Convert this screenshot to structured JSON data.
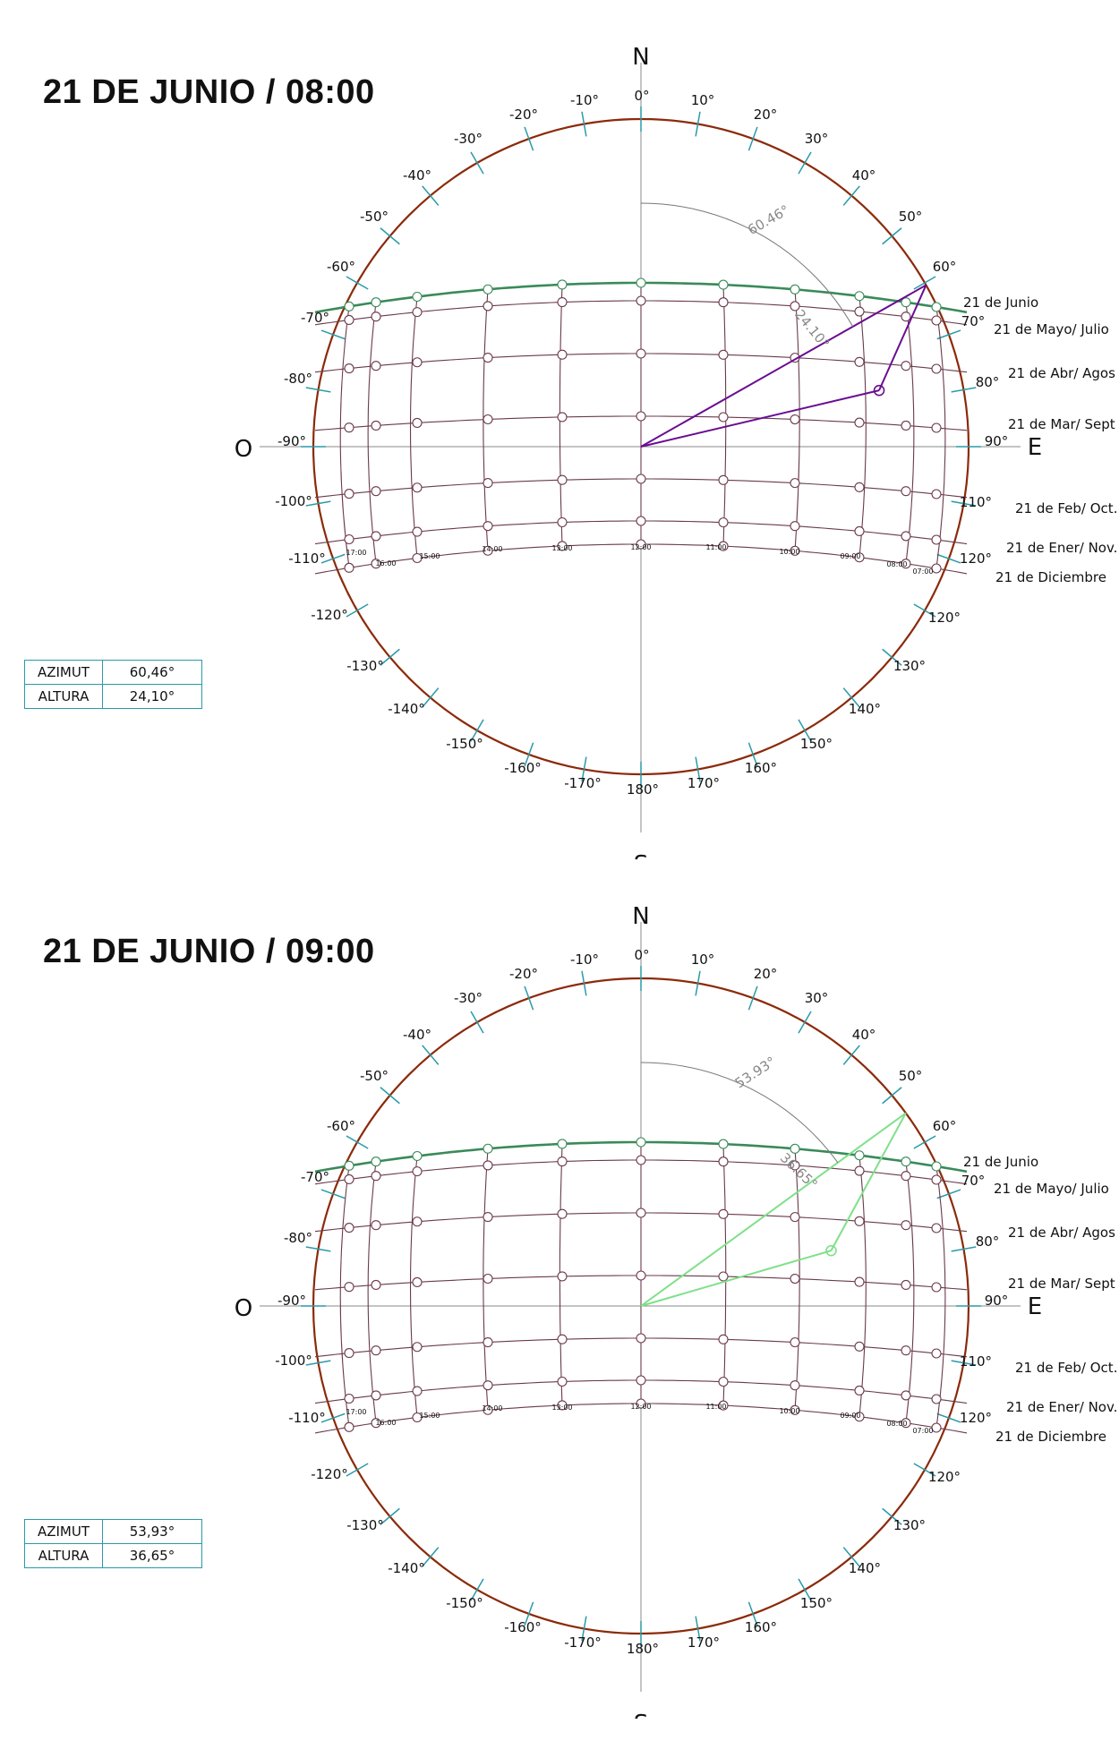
{
  "panels": [
    {
      "title": "21 DE JUNIO / 08:00",
      "azimut_label": "AZIMUT",
      "azimut": "60,46°",
      "altura_label": "ALTURA",
      "altura": "24,10°",
      "azimut_arc_label": "60.46°",
      "altura_arc_label": "24.10°",
      "sun_azimuth": 60.46,
      "sun_altitude": 24.1,
      "construction_color": "#6a0d91"
    },
    {
      "title": "21 DE JUNIO / 09:00",
      "azimut_label": "AZIMUT",
      "azimut": "53,93°",
      "altura_label": "ALTURA",
      "altura": "36,65°",
      "azimut_arc_label": "53.93°",
      "altura_arc_label": "36.65°",
      "sun_azimuth": 53.93,
      "sun_altitude": 36.65,
      "construction_color": "#7fe08a"
    }
  ],
  "compass": {
    "north": "N",
    "south": "S",
    "east": "E",
    "west": "O"
  },
  "degree_labels": [
    "0°",
    "10°",
    "20°",
    "30°",
    "40°",
    "50°",
    "60°",
    "70°",
    "80°",
    "90°",
    "110°",
    "120°",
    "120°",
    "130°",
    "140°",
    "150°",
    "160°",
    "170°",
    "180°",
    "-10°",
    "-20°",
    "-30°",
    "-40°",
    "-50°",
    "-60°",
    "-70°",
    "-80°",
    "-90°",
    "-100°",
    "-110°",
    "-120°",
    "-130°",
    "-140°",
    "-150°",
    "-160°",
    "-170°"
  ],
  "date_curves": [
    "21 de Junio",
    "21 de Mayo/ Julio",
    "21 de Abr/ Agos",
    "21 de Mar/ Sept",
    "21 de Feb/ Oct.",
    "21 de Ener/ Nov.",
    "21 de Diciembre"
  ],
  "hour_labels": [
    "17:00",
    "16:00",
    "15:00",
    "14:00",
    "13:00",
    "12:00",
    "11:00",
    "10:00",
    "09:00",
    "08:00",
    "07:00"
  ],
  "colors": {
    "horizon_circle": "#8b2a0a",
    "tick": "#2a9aa8",
    "grid": "#6b3a4a",
    "summer_curve": "#3a8a5a",
    "axis": "#888888"
  }
}
